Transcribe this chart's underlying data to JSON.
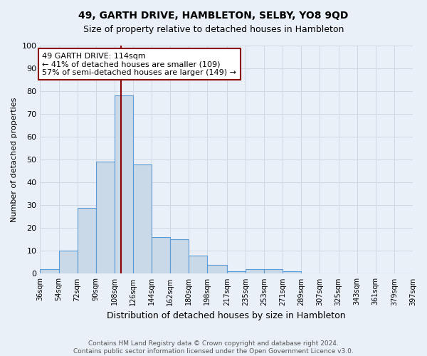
{
  "title": "49, GARTH DRIVE, HAMBLETON, SELBY, YO8 9QD",
  "subtitle": "Size of property relative to detached houses in Hambleton",
  "xlabel": "Distribution of detached houses by size in Hambleton",
  "ylabel": "Number of detached properties",
  "footer_line1": "Contains HM Land Registry data © Crown copyright and database right 2024.",
  "footer_line2": "Contains public sector information licensed under the Open Government Licence v3.0.",
  "bar_edges": [
    36,
    54,
    72,
    90,
    108,
    126,
    144,
    162,
    180,
    198,
    217,
    235,
    253,
    271,
    289,
    307,
    325,
    343,
    361,
    379,
    397
  ],
  "bar_heights": [
    2,
    10,
    29,
    49,
    78,
    48,
    16,
    15,
    8,
    4,
    1,
    2,
    2,
    1,
    0,
    0,
    0,
    0,
    0,
    0
  ],
  "bar_color": "#c9d9e8",
  "bar_edgecolor": "#5b9bd5",
  "vline_x": 114,
  "vline_color": "#8b0000",
  "annotation_text": "49 GARTH DRIVE: 114sqm\n← 41% of detached houses are smaller (109)\n57% of semi-detached houses are larger (149) →",
  "annotation_box_edgecolor": "#8b0000",
  "annotation_box_facecolor": "#ffffff",
  "ylim": [
    0,
    100
  ],
  "tick_labels": [
    "36sqm",
    "54sqm",
    "72sqm",
    "90sqm",
    "108sqm",
    "126sqm",
    "144sqm",
    "162sqm",
    "180sqm",
    "198sqm",
    "217sqm",
    "235sqm",
    "253sqm",
    "271sqm",
    "289sqm",
    "307sqm",
    "325sqm",
    "343sqm",
    "361sqm",
    "379sqm",
    "397sqm"
  ],
  "grid_color": "#d0d8e4",
  "background_color": "#eaf0f8",
  "title_fontsize": 10,
  "subtitle_fontsize": 9,
  "ylabel_fontsize": 8,
  "xlabel_fontsize": 9,
  "tick_fontsize": 7,
  "footer_fontsize": 6.5,
  "annotation_fontsize": 8
}
